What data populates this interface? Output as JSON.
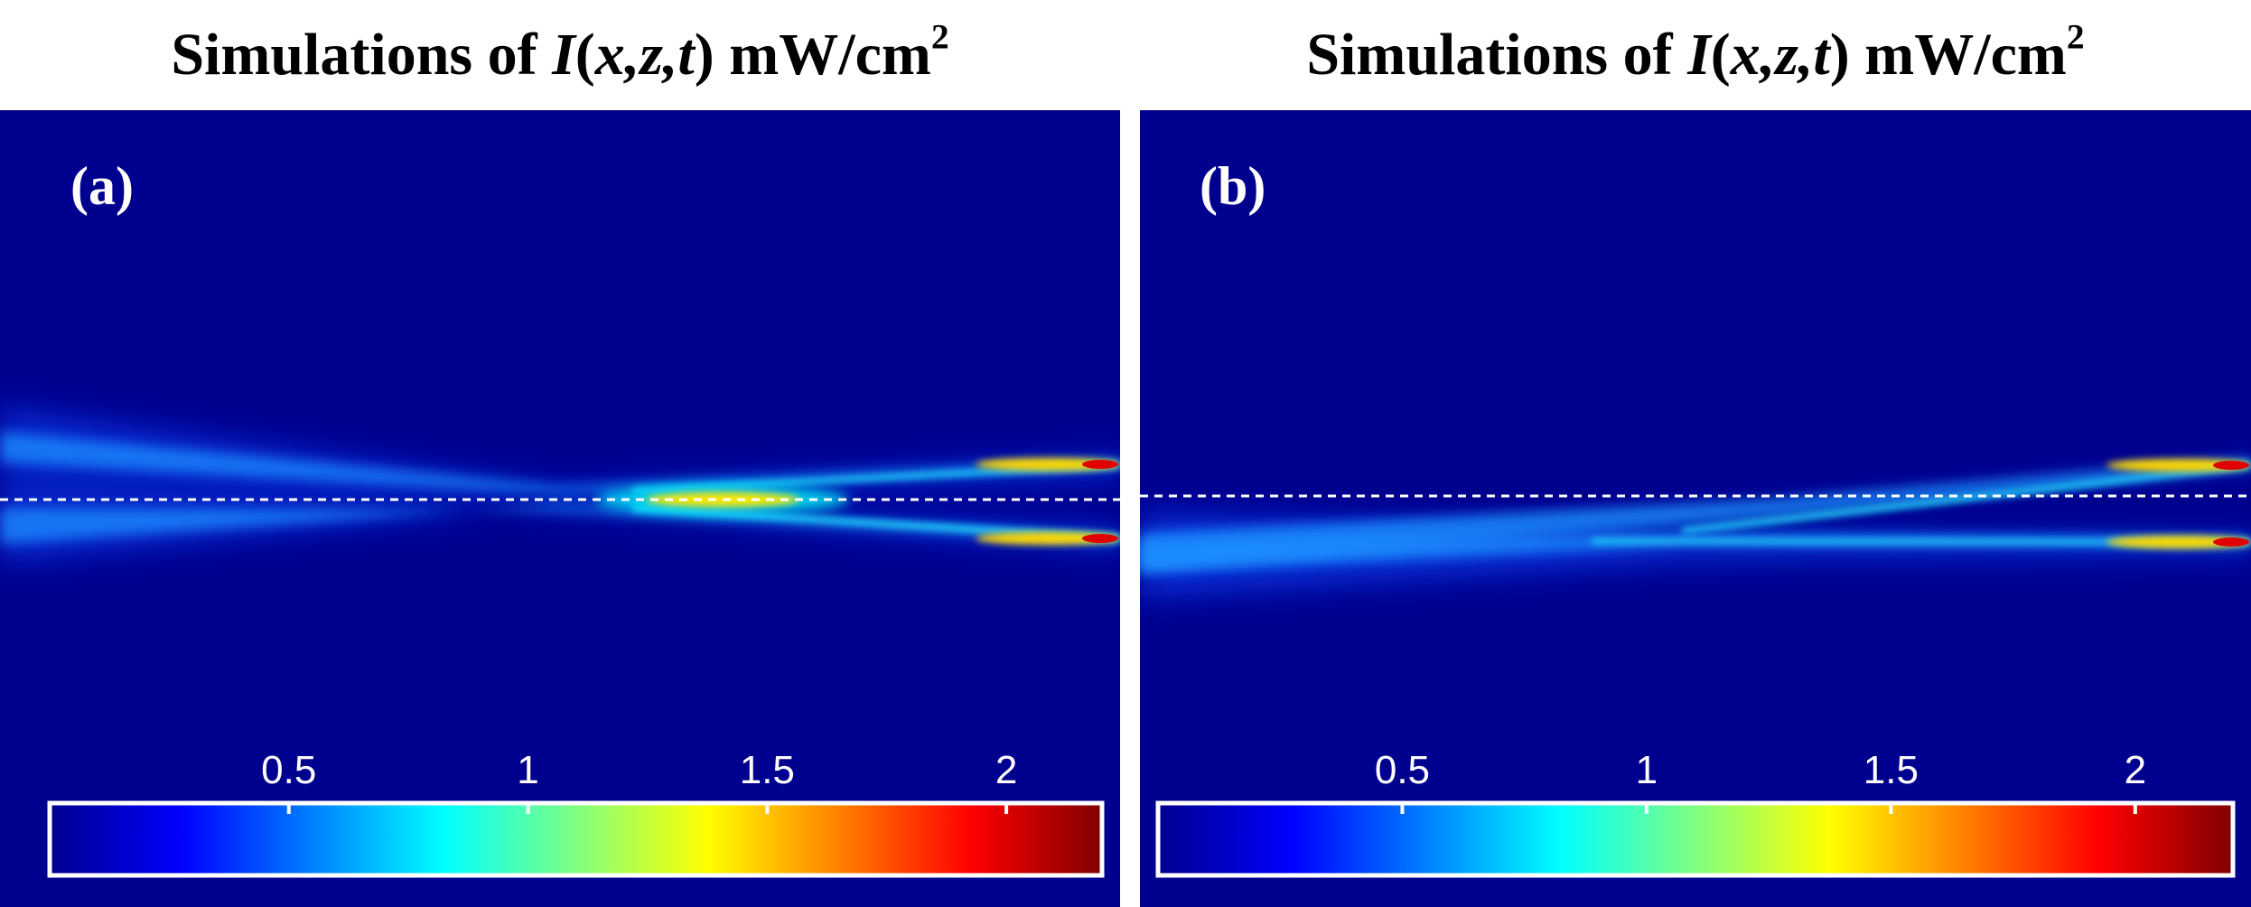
{
  "panels": [
    {
      "id": "a",
      "title": {
        "prefix": "Simulations of ",
        "symbol": "I",
        "args": "x,z,t",
        "unit": " mW/cm",
        "exp": "2"
      },
      "label": "(a)",
      "reference_line": "dashed",
      "beams": [
        {
          "name": "upper-beam",
          "peak": 2.0
        },
        {
          "name": "lower-beam",
          "peak": 2.0
        },
        {
          "name": "crossing-spot",
          "peak": 1.4
        }
      ]
    },
    {
      "id": "b",
      "title": {
        "prefix": "Simulations of ",
        "symbol": "I",
        "args": "x,z,t",
        "unit": " mW/cm",
        "exp": "2"
      },
      "label": "(b)",
      "reference_line": "dashed",
      "beams": [
        {
          "name": "upper-beam",
          "peak": 2.0
        },
        {
          "name": "lower-beam",
          "peak": 2.0
        }
      ]
    }
  ],
  "chart_data": {
    "type": "heatmap",
    "quantity": "I(x,z,t)",
    "unit": "mW/cm2",
    "colorbar": {
      "range": [
        0,
        2.2
      ],
      "ticks": [
        0.5,
        1,
        1.5,
        2
      ],
      "tick_labels": [
        "0.5",
        "1",
        "1.5",
        "2"
      ],
      "colormap": "jet",
      "stops": [
        "#00008f",
        "#0000ff",
        "#0080ff",
        "#00ffff",
        "#80ff80",
        "#ffff00",
        "#ff8000",
        "#ff0000",
        "#800000"
      ]
    },
    "background": "#00008f"
  }
}
